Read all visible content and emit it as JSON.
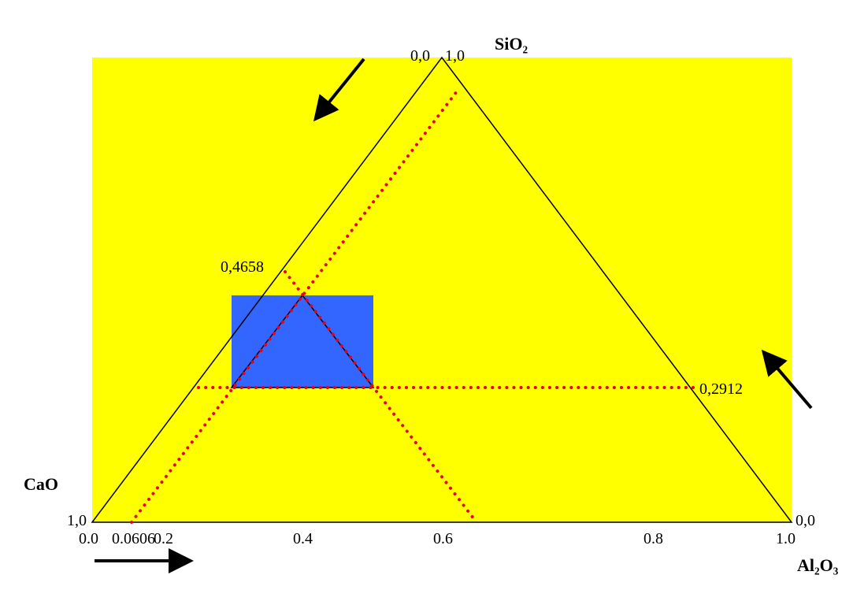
{
  "vertices": {
    "top": "SiO₂",
    "left": "CaO",
    "right": "Al₂O₃"
  },
  "apex_labels": [
    "0,0",
    "1,0"
  ],
  "left_corner_label": "1,0",
  "right_corner_label": "0,0",
  "bottom_axis_labels": [
    "0.0",
    "0.0606",
    "0.2",
    "0.4",
    "0.6",
    "0.8",
    "1.0"
  ],
  "point_labels": {
    "upper": "0,4658",
    "right": "0,2912"
  }
}
